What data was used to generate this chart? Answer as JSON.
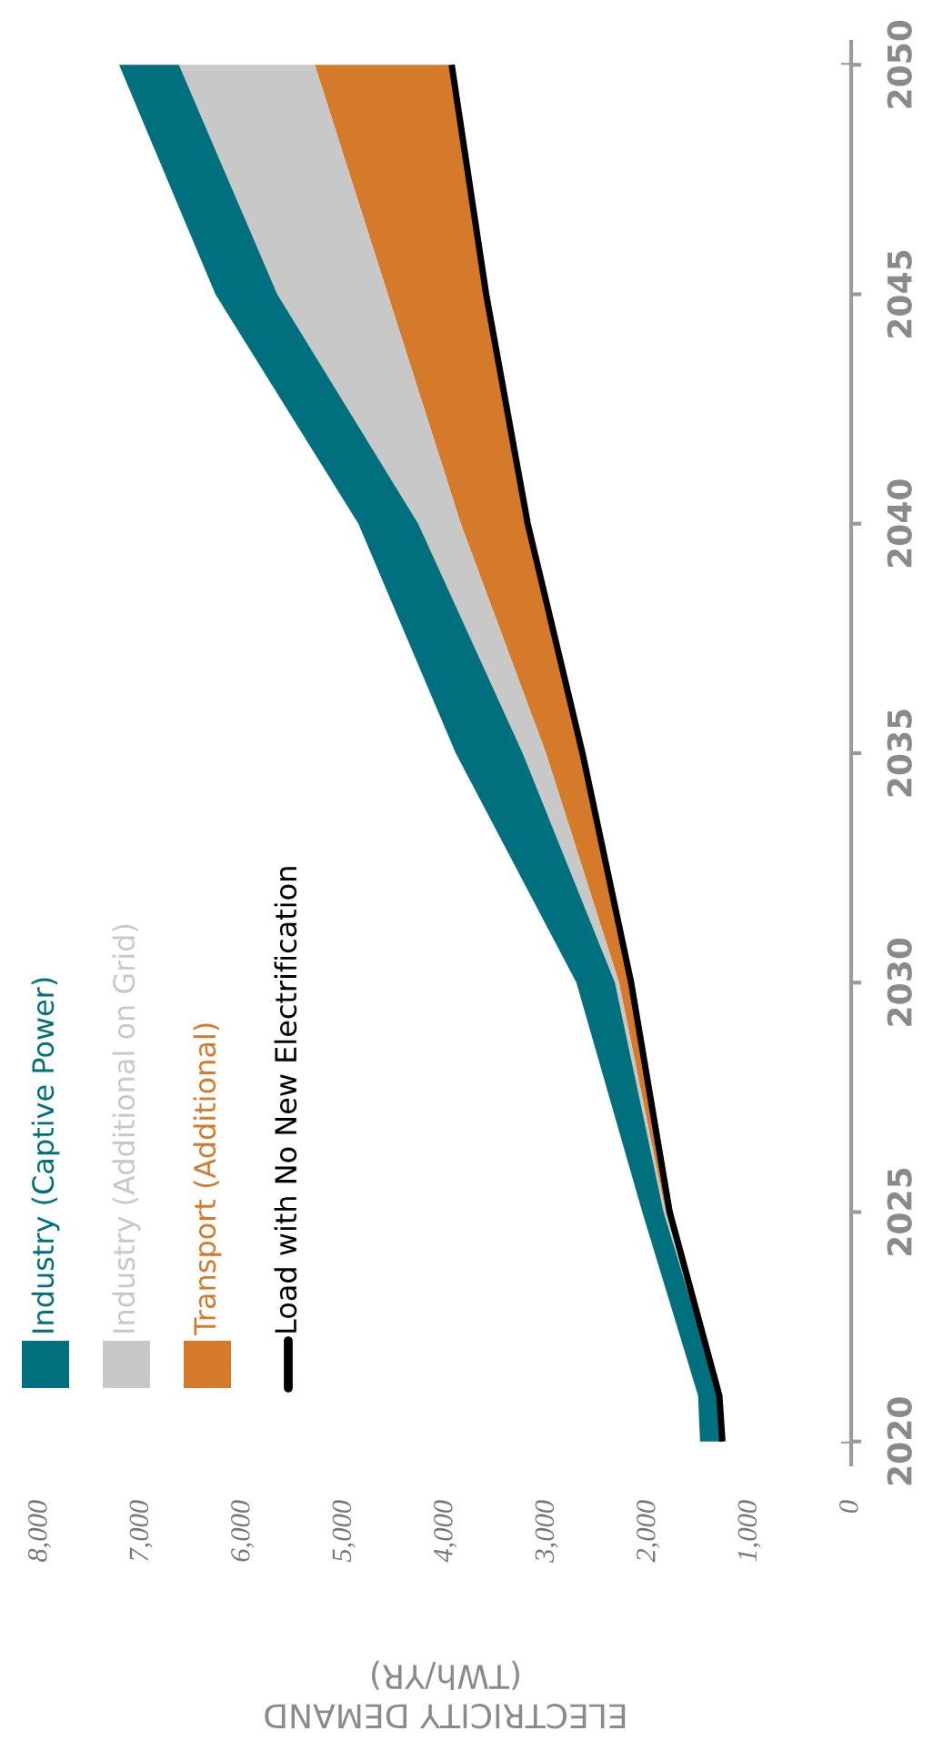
{
  "chart_data": {
    "type": "area",
    "stacked": true,
    "orientation": "horizontal",
    "grid": false,
    "xlabel": "ELECTRICITY DEMAND\n(TWh/YR)",
    "x": [
      2020,
      2021,
      2025,
      2030,
      2035,
      2040,
      2045,
      2050
    ],
    "ylim": [
      2019.5,
      2050.5
    ],
    "yticks": [
      2020,
      2025,
      2030,
      2035,
      2040,
      2045,
      2050
    ],
    "xlim": [
      8000,
      0
    ],
    "xticks": [
      {
        "value": 0,
        "label": "0"
      },
      {
        "value": 1000,
        "label": "1,000"
      },
      {
        "value": 2000,
        "label": "2,000"
      },
      {
        "value": 3000,
        "label": "3,000"
      },
      {
        "value": 4000,
        "label": "4,000"
      },
      {
        "value": 5000,
        "label": "5,000"
      },
      {
        "value": 6000,
        "label": "6,000"
      },
      {
        "value": 7000,
        "label": "7,000"
      },
      {
        "value": 8000,
        "label": "8,000"
      }
    ],
    "legend": "bottom left",
    "series": [
      {
        "name": "Load with No New Electrification",
        "type": "area",
        "color": "#000000",
        "values": [
          1270,
          1300,
          1790,
          2170,
          2650,
          3190,
          3600,
          3940
        ]
      },
      {
        "name": "Transport (Additional)",
        "type": "area",
        "color": "#d57a2a",
        "values": [
          0,
          0,
          40,
          120,
          360,
          660,
          970,
          1350
        ]
      },
      {
        "name": "Industry (Additional on Grid)",
        "type": "area",
        "color": "#c8c8c8",
        "values": [
          0,
          0,
          20,
          40,
          230,
          420,
          1090,
          1340
        ]
      },
      {
        "name": "Industry (Captive Power)",
        "type": "area",
        "color": "#00707f",
        "values": [
          220,
          210,
          210,
          380,
          660,
          590,
          610,
          590
        ]
      }
    ]
  }
}
